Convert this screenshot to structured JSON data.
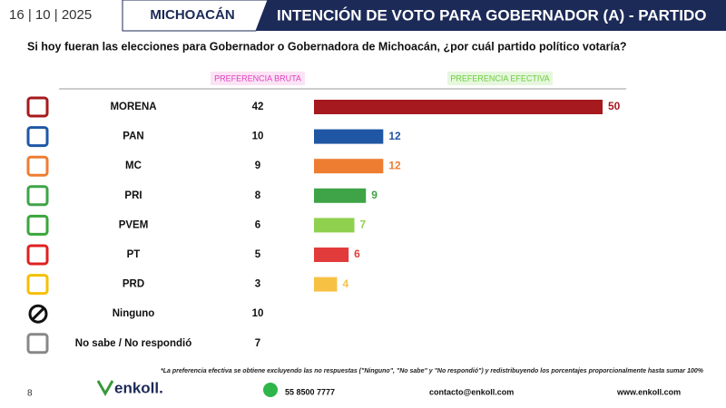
{
  "header": {
    "date": "16 | 10 | 2025",
    "state": "MICHOACÁN",
    "title": "INTENCIÓN DE VOTO PARA GOBERNADOR (A) - PARTIDO"
  },
  "question": "Si hoy fueran las elecciones para Gobernador o Gobernadora de Michoacán, ¿por cuál partido político votaría?",
  "chart_data": {
    "type": "bar",
    "orientation": "horizontal",
    "categories": [
      "MORENA",
      "PAN",
      "MC",
      "PRI",
      "PVEM",
      "PT",
      "PRD",
      "Ninguno",
      "No sabe / No respondió"
    ],
    "series": [
      {
        "name": "PREFERENCIA BRUTA",
        "color": "#e040c0",
        "values": [
          42,
          10,
          9,
          8,
          6,
          5,
          3,
          10,
          7
        ]
      },
      {
        "name": "PREFERENCIA EFECTIVA",
        "color": "#6ccb3c",
        "values": [
          50,
          12,
          12,
          9,
          7,
          6,
          4,
          null,
          null
        ],
        "colors": [
          "#a6191e",
          "#1f57a4",
          "#ee7d31",
          "#3ea447",
          "#8fd04f",
          "#e23b3b",
          "#f7c244",
          null,
          null
        ]
      }
    ]
  },
  "footnote": "*La preferencia efectiva se obtiene excluyendo las no respuestas (\"Ninguno\", \"No sabe\" y \"No respondió\") y redistribuyendo los porcentajes proporcionalmente hasta sumar 100%",
  "footer": {
    "page": "8",
    "logo": "enkoll.",
    "phone": "55 8500 7777",
    "email": "contacto@enkoll.com",
    "web": "www.enkoll.com"
  }
}
